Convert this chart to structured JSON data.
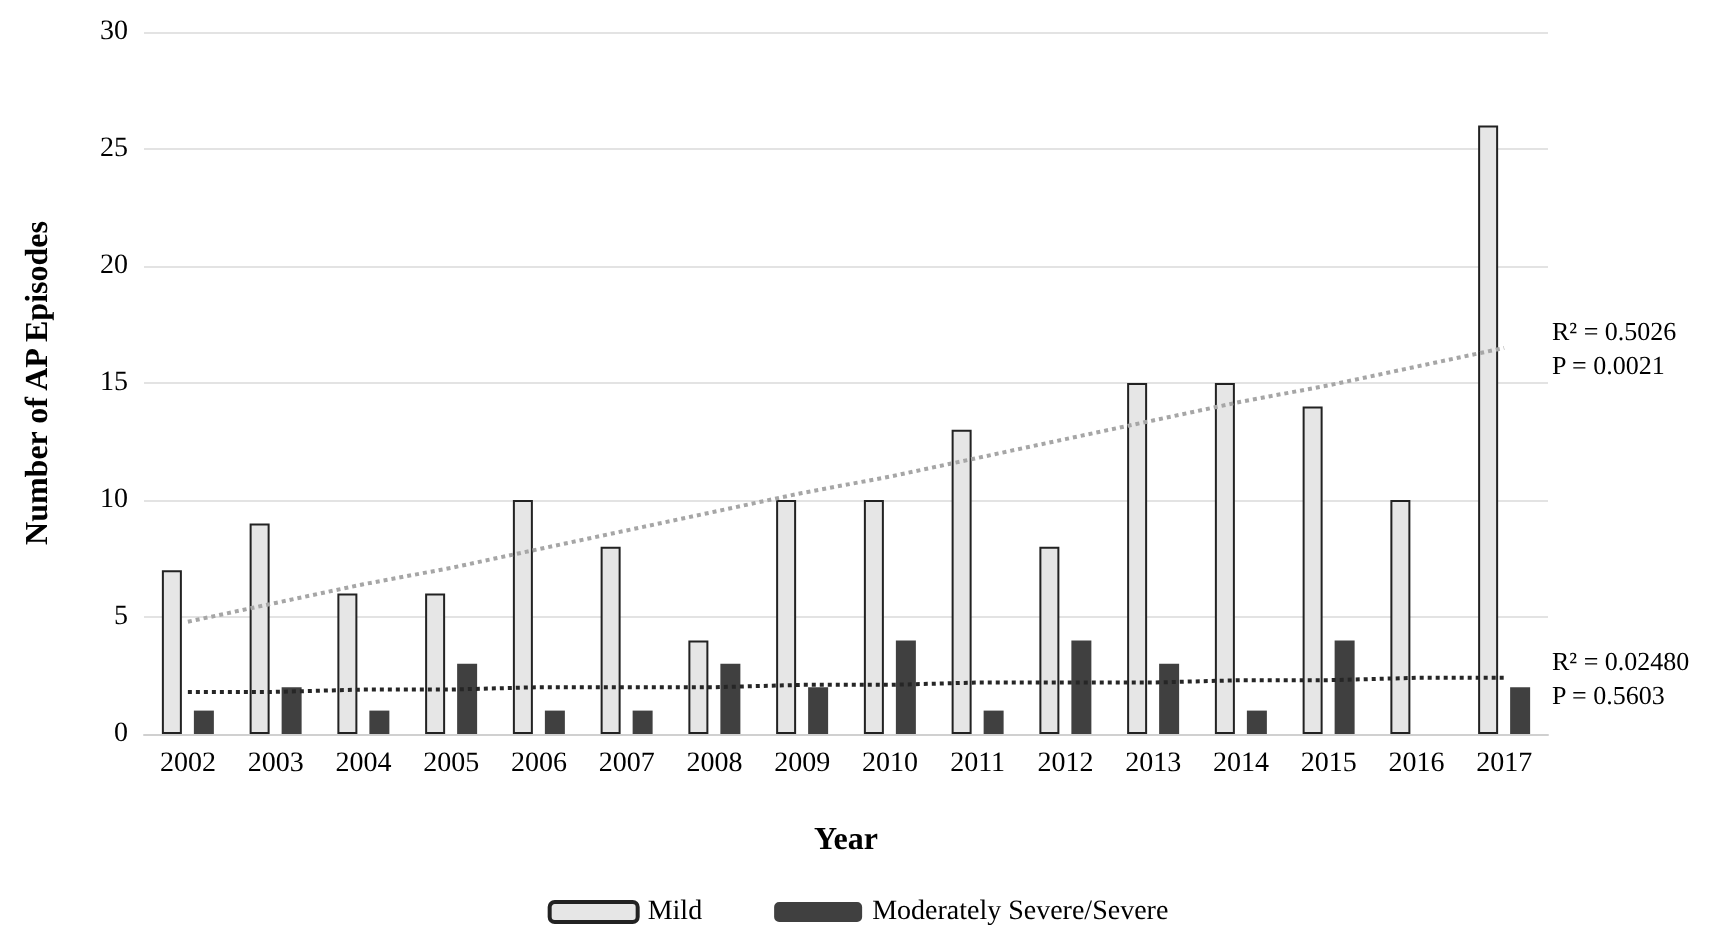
{
  "chart_data": {
    "type": "bar",
    "xlabel": "Year",
    "ylabel": "Number of AP Episodes",
    "categories": [
      "2002",
      "2003",
      "2004",
      "2005",
      "2006",
      "2007",
      "2008",
      "2009",
      "2010",
      "2011",
      "2012",
      "2013",
      "2014",
      "2015",
      "2016",
      "2017"
    ],
    "series": [
      {
        "name": "Mild",
        "color": "#e6e6e6",
        "values": [
          7,
          9,
          6,
          6,
          10,
          8,
          4,
          10,
          10,
          13,
          8,
          15,
          15,
          14,
          10,
          26
        ]
      },
      {
        "name": "Moderately Severe/Severe",
        "color": "#404040",
        "values": [
          1,
          2,
          1,
          3,
          1,
          1,
          3,
          2,
          4,
          1,
          4,
          3,
          1,
          4,
          0,
          2
        ]
      },
      {
        "type": "line",
        "color": "#a6a6a6",
        "line_style": "dotted",
        "marker": "none",
        "values": [
          4.8,
          5.6,
          6.4,
          7.1,
          7.9,
          8.7,
          9.5,
          10.3,
          11.0,
          11.8,
          12.6,
          13.4,
          14.2,
          14.9,
          15.7,
          16.5
        ]
      },
      {
        "type": "line",
        "color": "#262626",
        "line_style": "dotted",
        "marker": "none",
        "values": [
          1.8,
          1.8,
          1.9,
          1.9,
          2.0,
          2.0,
          2.0,
          2.1,
          2.1,
          2.2,
          2.2,
          2.2,
          2.3,
          2.3,
          2.4,
          2.4
        ]
      }
    ],
    "ylim": [
      0,
      30
    ],
    "yticks": [
      0,
      5,
      10,
      15,
      20,
      25,
      30
    ],
    "grid": "y",
    "legend": "bottom",
    "annotations": [
      {
        "text": "R² = 0.5026\nP = 0.0021",
        "x": "2017",
        "y": 16.5
      },
      {
        "text": "R² = 0.02480\nP = 0.5603",
        "x": "2017",
        "y": 2.4
      }
    ]
  }
}
